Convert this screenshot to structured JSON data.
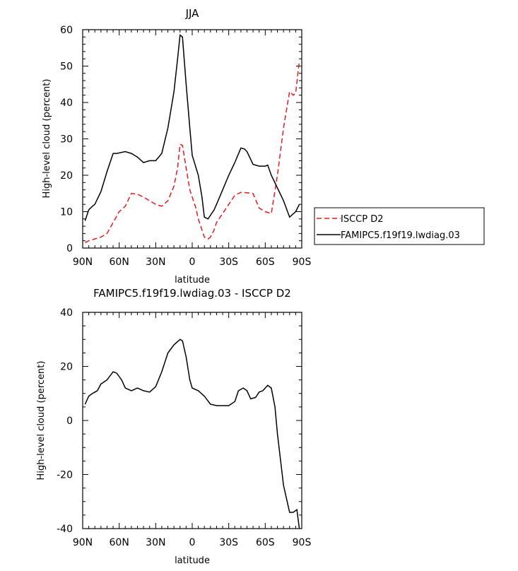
{
  "chart_data": [
    {
      "type": "line",
      "title": "JJA",
      "xlabel": "latitude",
      "ylabel": "High-level cloud (percent)",
      "xlim": [
        90,
        -90
      ],
      "ylim": [
        0,
        60
      ],
      "x_ticks": [
        90,
        60,
        30,
        0,
        -30,
        -60,
        -90
      ],
      "x_tick_labels": [
        "90N",
        "60N",
        "30N",
        "0",
        "30S",
        "60S",
        "90S"
      ],
      "y_ticks": [
        0,
        10,
        20,
        30,
        40,
        50,
        60
      ],
      "y_tick_labels": [
        "0",
        "10",
        "20",
        "30",
        "40",
        "50",
        "60"
      ],
      "legend_position": "right",
      "series": [
        {
          "name": "ISCCP D2",
          "color": "#e8191d",
          "dash": "dashed",
          "x": [
            88,
            85,
            80,
            75,
            70,
            65,
            60,
            55,
            50,
            45,
            40,
            35,
            30,
            25,
            20,
            15,
            12,
            10,
            8,
            5,
            2,
            0,
            -3,
            -5,
            -8,
            -10,
            -13,
            -15,
            -18,
            -20,
            -25,
            -30,
            -35,
            -40,
            -45,
            -50,
            -55,
            -60,
            -65,
            -70,
            -75,
            -80,
            -83,
            -85,
            -88
          ],
          "y": [
            1.5,
            2,
            2.5,
            3,
            4,
            7,
            10,
            11.5,
            15,
            14.8,
            14,
            13,
            12,
            11.5,
            13,
            17,
            22,
            28.5,
            28.2,
            22,
            16,
            14,
            11,
            8,
            5,
            3,
            2.5,
            3,
            5,
            7,
            9.5,
            12,
            14.5,
            15.3,
            15.2,
            15,
            11,
            10,
            9.5,
            20,
            33,
            43,
            42,
            42.5,
            51.5
          ]
        },
        {
          "name": "FAMIPC5.f19f19.lwdiag.03",
          "color": "#000000",
          "dash": "solid",
          "x": [
            88,
            85,
            82,
            80,
            75,
            70,
            65,
            62,
            55,
            50,
            45,
            40,
            35,
            30,
            25,
            20,
            15,
            12,
            10,
            8,
            5,
            2,
            0,
            -5,
            -8,
            -10,
            -13,
            -15,
            -18,
            -20,
            -25,
            -30,
            -35,
            -40,
            -43,
            -45,
            -50,
            -55,
            -60,
            -62,
            -65,
            -70,
            -75,
            -80,
            -85,
            -88
          ],
          "y": [
            7.5,
            10.5,
            11.5,
            12,
            15.5,
            21,
            26,
            26,
            26.5,
            26,
            25,
            23.5,
            24,
            24,
            26,
            33,
            43,
            52,
            58.5,
            58,
            45,
            33,
            25.5,
            20,
            14,
            8.5,
            8,
            9,
            10.5,
            12,
            16,
            20,
            23.5,
            27.5,
            27.2,
            26.5,
            23,
            22.5,
            22.5,
            22.8,
            20,
            16.5,
            13,
            8.5,
            10,
            12
          ]
        }
      ]
    },
    {
      "type": "line",
      "title": "FAMIPC5.f19f19.lwdiag.03 - ISCCP D2",
      "xlabel": "latitude",
      "ylabel": "High-level cloud (percent)",
      "xlim": [
        90,
        -90
      ],
      "ylim": [
        -40,
        40
      ],
      "x_ticks": [
        90,
        60,
        30,
        0,
        -30,
        -60,
        -90
      ],
      "x_tick_labels": [
        "90N",
        "60N",
        "30N",
        "0",
        "30S",
        "60S",
        "90S"
      ],
      "y_ticks": [
        -40,
        -20,
        0,
        20,
        40
      ],
      "y_tick_labels": [
        "-40",
        "-20",
        "0",
        "20",
        "40"
      ],
      "series": [
        {
          "color": "#000000",
          "dash": "solid",
          "x": [
            88,
            85,
            82,
            78,
            75,
            70,
            65,
            62,
            58,
            55,
            50,
            45,
            40,
            35,
            30,
            25,
            20,
            15,
            10,
            8,
            5,
            2,
            0,
            -5,
            -10,
            -15,
            -20,
            -25,
            -30,
            -35,
            -38,
            -42,
            -45,
            -48,
            -52,
            -55,
            -58,
            -62,
            -65,
            -68,
            -70,
            -75,
            -80,
            -83,
            -86,
            -88
          ],
          "y": [
            6,
            9,
            10,
            11,
            13.5,
            15,
            18,
            17.5,
            15,
            12,
            11,
            12,
            11,
            10.5,
            12.5,
            18,
            25,
            28,
            30,
            29.5,
            23.5,
            15,
            12,
            11,
            9,
            6,
            5.5,
            5.5,
            5.5,
            7,
            11,
            12,
            11,
            8,
            8.5,
            10.5,
            11,
            13,
            12,
            5,
            -5,
            -24,
            -34,
            -34,
            -33,
            -40
          ]
        }
      ]
    }
  ]
}
